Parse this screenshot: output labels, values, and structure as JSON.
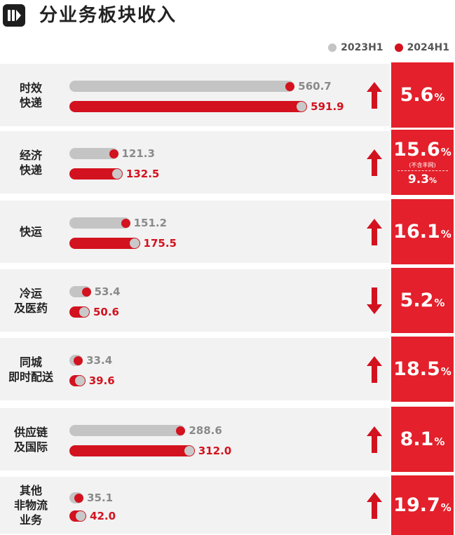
{
  "title": "分业务板块收入",
  "colors": {
    "prev": "#c4c4c4",
    "curr": "#d3121f",
    "box": "#e3202b",
    "row_bg": "#f2f2f2"
  },
  "legend": [
    {
      "label": "2023H1",
      "color": "#c4c4c4"
    },
    {
      "label": "2024H1",
      "color": "#d3121f"
    }
  ],
  "chart_data": {
    "type": "bar",
    "orientation": "horizontal",
    "title": "分业务板块收入",
    "categories": [
      "时效快递",
      "经济快递",
      "快运",
      "冷运及医药",
      "同城即时配送",
      "供应链及国际",
      "其他非物流业务"
    ],
    "series": [
      {
        "name": "2023H1",
        "values": [
          560.7,
          121.3,
          151.2,
          53.4,
          33.4,
          288.6,
          35.1
        ]
      },
      {
        "name": "2024H1",
        "values": [
          591.9,
          132.5,
          175.5,
          50.6,
          39.6,
          312.0,
          42.0
        ]
      }
    ],
    "xlim": [
      0,
      620
    ],
    "legend_position": "top-right",
    "grid": false
  },
  "rows": [
    {
      "label_lines": [
        "时效",
        "快递"
      ],
      "prev_text": "560.7",
      "curr_text": "591.9",
      "trend": "up",
      "growth": "5.6",
      "pct_sign": "%"
    },
    {
      "label_lines": [
        "经济",
        "快递"
      ],
      "prev_text": "121.3",
      "curr_text": "132.5",
      "trend": "up",
      "growth": "15.6",
      "pct_sign": "%",
      "note": "(不含丰网)",
      "sub_growth": "9.3",
      "sub_sign": "%"
    },
    {
      "label_lines": [
        "快运"
      ],
      "prev_text": "151.2",
      "curr_text": "175.5",
      "trend": "up",
      "growth": "16.1",
      "pct_sign": "%"
    },
    {
      "label_lines": [
        "冷运",
        "及医药"
      ],
      "prev_text": "53.4",
      "curr_text": "50.6",
      "trend": "down",
      "growth": "5.2",
      "pct_sign": "%"
    },
    {
      "label_lines": [
        "同城",
        "即时配送"
      ],
      "prev_text": "33.4",
      "curr_text": "39.6",
      "trend": "up",
      "growth": "18.5",
      "pct_sign": "%"
    },
    {
      "label_lines": [
        "供应链",
        "及国际"
      ],
      "prev_text": "288.6",
      "curr_text": "312.0",
      "trend": "up",
      "growth": "8.1",
      "pct_sign": "%"
    },
    {
      "label_lines": [
        "其他",
        "非物流",
        "业务"
      ],
      "prev_text": "35.1",
      "curr_text": "42.0",
      "trend": "up",
      "growth": "19.7",
      "pct_sign": "%"
    }
  ]
}
